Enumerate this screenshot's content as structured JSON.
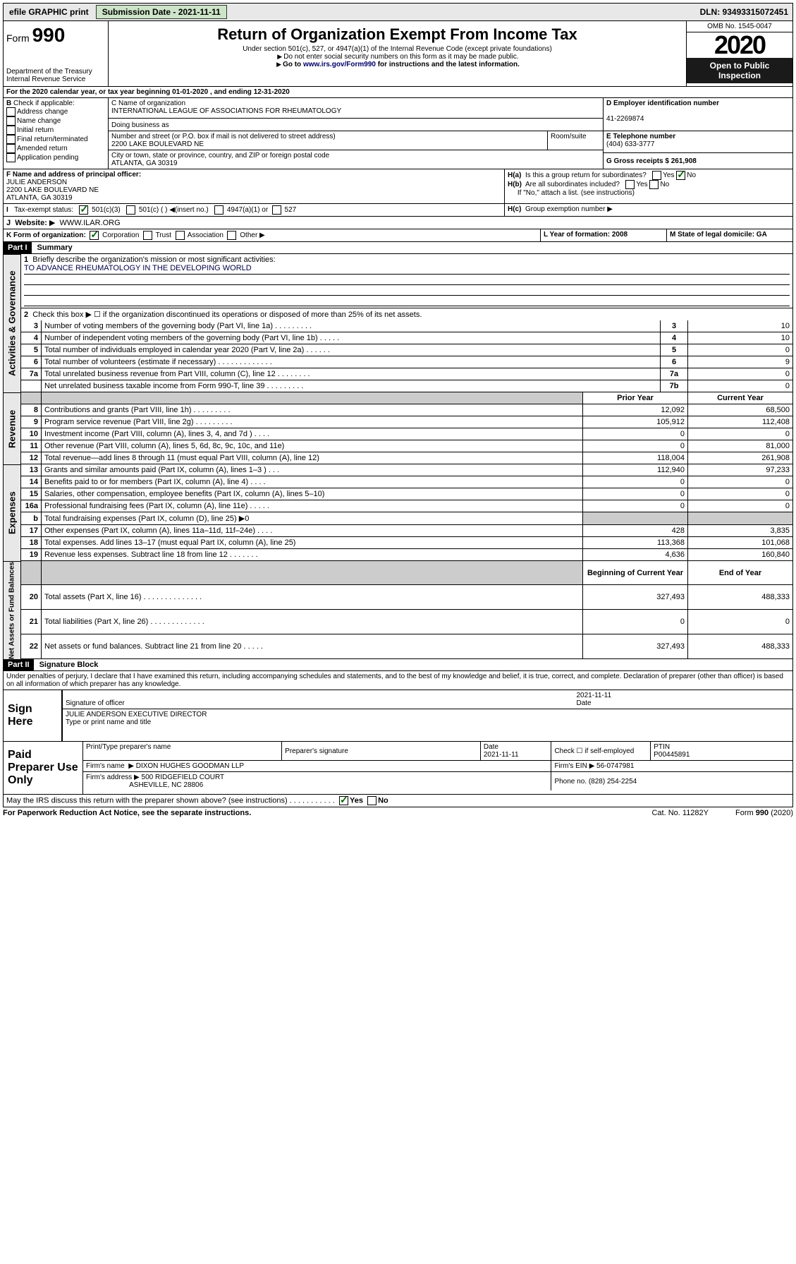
{
  "topbar": {
    "efile": "efile GRAPHIC print",
    "subdate_lbl": "Submission Date - 2021-11-11",
    "dln": "DLN: 93493315072451"
  },
  "omb": "OMB No. 1545-0047",
  "year": "2020",
  "open_public": "Open to Public Inspection",
  "form_label": "Form",
  "form_no": "990",
  "dept": "Department of the Treasury Internal Revenue Service",
  "title": "Return of Organization Exempt From Income Tax",
  "sub1": "Under section 501(c), 527, or 4947(a)(1) of the Internal Revenue Code (except private foundations)",
  "sub2": "Do not enter social security numbers on this form as it may be made public.",
  "sub3": "Go to www.irs.gov/Form990 for instructions and the latest information.",
  "period": "For the 2020 calendar year, or tax year beginning 01-01-2020    , and ending 12-31-2020",
  "check_if": "Check if applicable:",
  "checks": [
    "Address change",
    "Name change",
    "Initial return",
    "Final return/terminated",
    "Amended return",
    "Application pending"
  ],
  "c_name_lbl": "C Name of organization",
  "org_name": "INTERNATIONAL LEAGUE OF ASSOCIATIONS FOR RHEUMATOLOGY",
  "dba_lbl": "Doing business as",
  "addr_lbl": "Number and street (or P.O. box if mail is not delivered to street address)",
  "room_lbl": "Room/suite",
  "addr": "2200 LAKE BOULEVARD NE",
  "city_lbl": "City or town, state or province, country, and ZIP or foreign postal code",
  "city": "ATLANTA, GA  30319",
  "d_ein_lbl": "D Employer identification number",
  "ein": "41-2269874",
  "e_tel_lbl": "E Telephone number",
  "tel": "(404) 633-3777",
  "g_gross": "G Gross receipts $ 261,908",
  "f_officer_lbl": "F  Name and address of principal officer:",
  "officer": "JULIE ANDERSON\n2200 LAKE BOULEVARD NE\nATLANTA, GA  30319",
  "ha": "Is this a group return for subordinates?",
  "hb": "Are all subordinates included?",
  "hc_note": "If \"No,\" attach a list. (see instructions)",
  "hc": "Group exemption number",
  "yes": "Yes",
  "no": "No",
  "i_lbl": "Tax-exempt status:",
  "i_opts": [
    "501(c)(3)",
    "501(c) (  )",
    "(insert no.)",
    "4947(a)(1) or",
    "527"
  ],
  "j_lbl": "Website:",
  "j_val": "WWW.ILAR.ORG",
  "k_lbl": "K Form of organization:",
  "k_opts": [
    "Corporation",
    "Trust",
    "Association",
    "Other"
  ],
  "l_lbl": "L Year of formation: 2008",
  "m_lbl": "M State of legal domicile: GA",
  "part1": "Part I",
  "part1_title": "Summary",
  "p1_1": "Briefly describe the organization's mission or most significant activities:",
  "mission": "TO ADVANCE RHEUMATOLOGY IN THE DEVELOPING WORLD",
  "p1_2": "Check this box ▶ ☐  if the organization discontinued its operations or disposed of more than 25% of its net assets.",
  "rows_ag": [
    {
      "n": "3",
      "t": "Number of voting members of the governing body (Part VI, line 1a)   .    .    .    .    .    .    .    .    .",
      "b": "3",
      "v": "10"
    },
    {
      "n": "4",
      "t": "Number of independent voting members of the governing body (Part VI, line 1b)   .    .    .    .    .",
      "b": "4",
      "v": "10"
    },
    {
      "n": "5",
      "t": "Total number of individuals employed in calendar year 2020 (Part V, line 2a)   .    .    .    .    .    .",
      "b": "5",
      "v": "0"
    },
    {
      "n": "6",
      "t": "Total number of volunteers (estimate if necessary)   .    .    .    .    .    .    .    .    .    .    .    .    .",
      "b": "6",
      "v": "9"
    },
    {
      "n": "7a",
      "t": "Total unrelated business revenue from Part VIII, column (C), line 12   .    .    .    .    .    .    .    .",
      "b": "7a",
      "v": "0"
    },
    {
      "n": "",
      "t": "Net unrelated business taxable income from Form 990-T, line 39   .    .    .    .    .    .    .    .    .",
      "b": "7b",
      "v": "0"
    }
  ],
  "hdr_prior": "Prior Year",
  "hdr_curr": "Current Year",
  "rev": [
    {
      "n": "8",
      "t": "Contributions and grants (Part VIII, line 1h)   .    .    .    .    .    .    .    .    .",
      "p": "12,092",
      "c": "68,500"
    },
    {
      "n": "9",
      "t": "Program service revenue (Part VIII, line 2g)   .    .    .    .    .    .    .    .    .",
      "p": "105,912",
      "c": "112,408"
    },
    {
      "n": "10",
      "t": "Investment income (Part VIII, column (A), lines 3, 4, and 7d )   .    .    .    .",
      "p": "0",
      "c": "0"
    },
    {
      "n": "11",
      "t": "Other revenue (Part VIII, column (A), lines 5, 6d, 8c, 9c, 10c, and 11e)",
      "p": "0",
      "c": "81,000"
    },
    {
      "n": "12",
      "t": "Total revenue—add lines 8 through 11 (must equal Part VIII, column (A), line 12)",
      "p": "118,004",
      "c": "261,908"
    }
  ],
  "exp": [
    {
      "n": "13",
      "t": "Grants and similar amounts paid (Part IX, column (A), lines 1–3 )   .    .    .",
      "p": "112,940",
      "c": "97,233"
    },
    {
      "n": "14",
      "t": "Benefits paid to or for members (Part IX, column (A), line 4)   .    .    .    .",
      "p": "0",
      "c": "0"
    },
    {
      "n": "15",
      "t": "Salaries, other compensation, employee benefits (Part IX, column (A), lines 5–10)",
      "p": "0",
      "c": "0"
    },
    {
      "n": "16a",
      "t": "Professional fundraising fees (Part IX, column (A), line 11e)   .    .    .    .    .",
      "p": "0",
      "c": "0"
    },
    {
      "n": "b",
      "t": "Total fundraising expenses (Part IX, column (D), line 25) ▶0",
      "p": "",
      "c": "",
      "shade": true
    },
    {
      "n": "17",
      "t": "Other expenses (Part IX, column (A), lines 11a–11d, 11f–24e)   .    .    .    .",
      "p": "428",
      "c": "3,835"
    },
    {
      "n": "18",
      "t": "Total expenses. Add lines 13–17 (must equal Part IX, column (A), line 25)",
      "p": "113,368",
      "c": "101,068"
    },
    {
      "n": "19",
      "t": "Revenue less expenses. Subtract line 18 from line 12   .    .    .    .    .    .    .",
      "p": "4,636",
      "c": "160,840"
    }
  ],
  "hdr_boy": "Beginning of Current Year",
  "hdr_eoy": "End of Year",
  "na": [
    {
      "n": "20",
      "t": "Total assets (Part X, line 16)   .    .    .    .    .    .    .    .    .    .    .    .    .    .",
      "p": "327,493",
      "c": "488,333"
    },
    {
      "n": "21",
      "t": "Total liabilities (Part X, line 26)   .    .    .    .    .    .    .    .    .    .    .    .    .",
      "p": "0",
      "c": "0"
    },
    {
      "n": "22",
      "t": "Net assets or fund balances. Subtract line 21 from line 20   .    .    .    .    .",
      "p": "327,493",
      "c": "488,333"
    }
  ],
  "vlabels": {
    "ag": "Activities & Governance",
    "rev": "Revenue",
    "exp": "Expenses",
    "na": "Net Assets or Fund Balances"
  },
  "part2": "Part II",
  "part2_title": "Signature Block",
  "perjury": "Under penalties of perjury, I declare that I have examined this return, including accompanying schedules and statements, and to the best of my knowledge and belief, it is true, correct, and complete. Declaration of preparer (other than officer) is based on all information of which preparer has any knowledge.",
  "sign_here": "Sign Here",
  "sig_officer": "Signature of officer",
  "sig_date": "2021-11-11",
  "sig_datel": "Date",
  "sig_name": "JULIE ANDERSON  EXECUTIVE DIRECTOR",
  "sig_name_lbl": "Type or print name and title",
  "paid": "Paid Preparer Use Only",
  "prep_name_lbl": "Print/Type preparer's name",
  "prep_sig_lbl": "Preparer's signature",
  "prep_date": "2021-11-11",
  "check_self": "Check ☐ if self-employed",
  "ptin_lbl": "PTIN",
  "ptin": "P00445891",
  "firm_name_lbl": "Firm's name",
  "firm_name": "DIXON HUGHES GOODMAN LLP",
  "firm_ein_lbl": "Firm's EIN",
  "firm_ein": "56-0747981",
  "firm_addr_lbl": "Firm's address",
  "firm_addr": "500 RIDGEFIELD COURT",
  "firm_city": "ASHEVILLE, NC  28806",
  "firm_phone_lbl": "Phone no.",
  "firm_phone": "(828) 254-2254",
  "discuss": "May the IRS discuss this return with the preparer shown above? (see instructions)    .    .    .    .    .    .    .    .    .    .    .",
  "pra": "For Paperwork Reduction Act Notice, see the separate instructions.",
  "cat": "Cat. No. 11282Y",
  "form_foot": "Form 990 (2020)"
}
